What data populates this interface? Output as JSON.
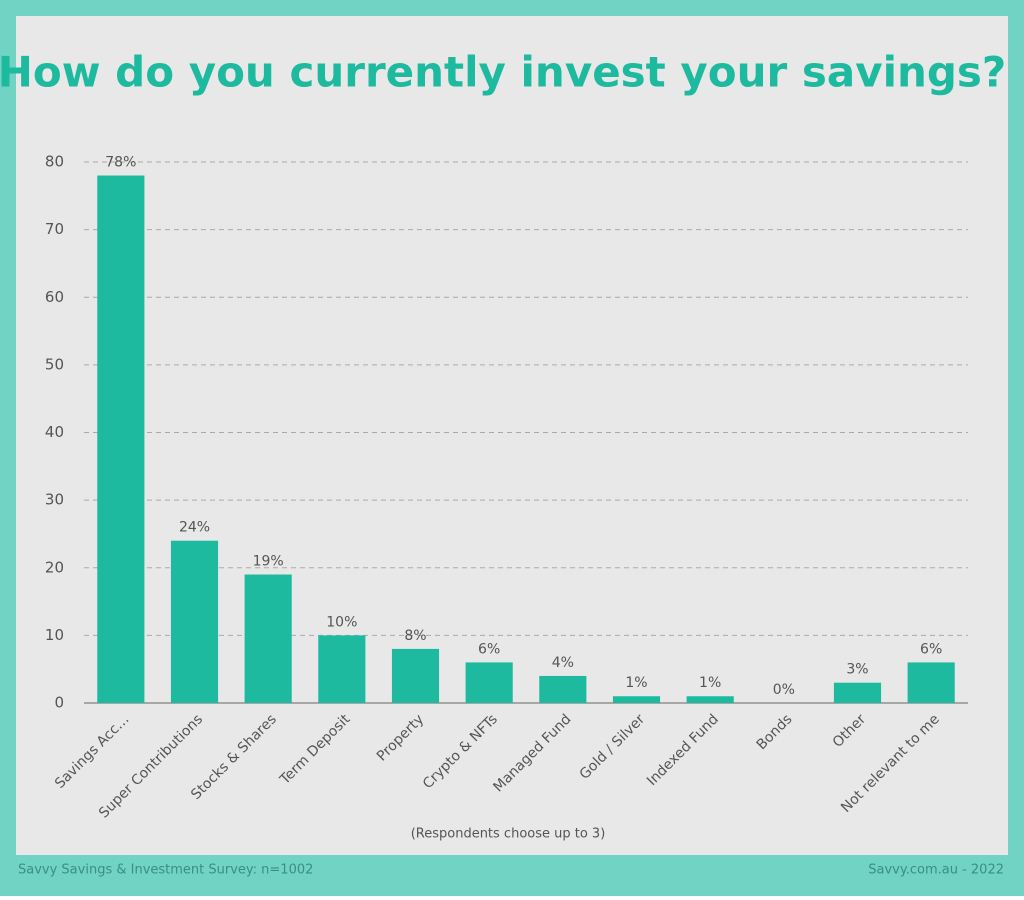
{
  "chart_data": {
    "type": "bar",
    "title": "How do you currently invest your savings?",
    "categories": [
      "Savings Acc…",
      "Super Contributions",
      "Stocks & Shares",
      "Term Deposit",
      "Property",
      "Crypto & NFTs",
      "Managed Fund",
      "Gold / Silver",
      "Indexed Fund",
      "Bonds",
      "Other",
      "Not relevant to me"
    ],
    "values": [
      78,
      24,
      19,
      10,
      8,
      6,
      4,
      1,
      1,
      0,
      3,
      6
    ],
    "value_labels": [
      "78%",
      "24%",
      "19%",
      "10%",
      "8%",
      "6%",
      "4%",
      "1%",
      "1%",
      "0%",
      "3%",
      "6%"
    ],
    "color": "#1dba9f",
    "ylim": [
      0,
      80
    ],
    "yticks": [
      0,
      10,
      20,
      30,
      40,
      50,
      60,
      70,
      80
    ],
    "grid": true,
    "note": "(Respondents choose up to 3)",
    "footer_left": "Savvy Savings & Investment Survey: n=1002",
    "footer_right": "Savvy.com.au - 2022"
  }
}
